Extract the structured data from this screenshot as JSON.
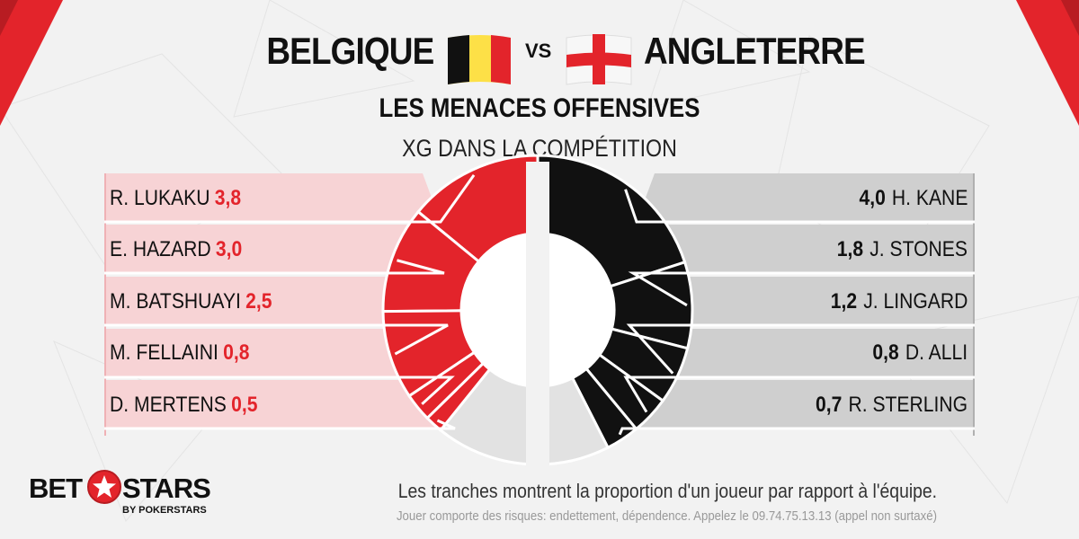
{
  "header": {
    "team_left": "BELGIQUE",
    "team_right": "ANGLETERRE",
    "vs": "VS",
    "title": "LES MENACES OFFENSIVES",
    "subtitle": "XG DANS LA COMPÉTITION"
  },
  "flags": {
    "belgium_icon": "belgium-flag-icon",
    "england_icon": "england-flag-icon"
  },
  "colors": {
    "belgium_accent": "#e3242b",
    "england_accent": "#111111",
    "remainder": "#e2e2e2",
    "belgium_panel": "#f7d3d5",
    "england_panel": "#cfcfcf"
  },
  "chart_data": [
    {
      "type": "pie",
      "team": "BELGIQUE",
      "categories": [
        "R. LUKAKU",
        "E. HAZARD",
        "M. BATSHUAYI",
        "M. FELLAINI",
        "D. MERTENS"
      ],
      "values": [
        "3,8",
        "3,0",
        "2,5",
        "0,8",
        "0,5"
      ],
      "slice_fractions": [
        0.281,
        0.222,
        0.185,
        0.059,
        0.037
      ],
      "remainder_fraction": 0.216
    },
    {
      "type": "pie",
      "team": "ANGLETERRE",
      "categories": [
        "H. KANE",
        "J. STONES",
        "J. LINGARD",
        "D. ALLI",
        "R. STERLING"
      ],
      "values": [
        "4,0",
        "1,8",
        "1,2",
        "0,8",
        "0,7"
      ],
      "slice_fractions": [
        0.4,
        0.18,
        0.12,
        0.08,
        0.07
      ],
      "remainder_fraction": 0.15
    }
  ],
  "footer": {
    "caption": "Les tranches montrent la proportion d'un joueur par rapport à l'équipe.",
    "disclaimer": "Jouer comporte des risques: endettement, dépendence. Appelez le 09.74.75.13.13 (appel non surtaxé)",
    "logo_bet": "BET",
    "logo_stars": "STARS",
    "logo_sub": "BY POKERSTARS",
    "logo_icon": "betstars-star-icon"
  }
}
